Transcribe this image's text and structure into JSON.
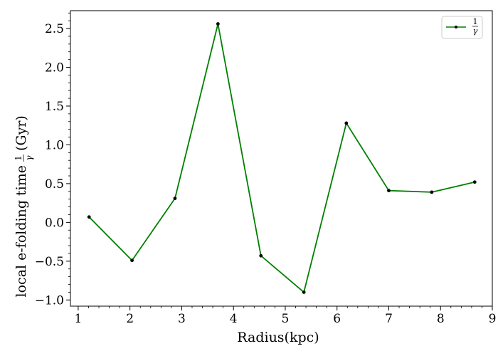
{
  "chart_data": {
    "type": "line",
    "xlabel": "Radius(kpc)",
    "ylabel": "local e-folding time",
    "ylabel_fraction": {
      "numerator": "1",
      "denominator": "γ"
    },
    "ylabel_unit": "(Gyr)",
    "xlim": [
      0.85,
      9.0
    ],
    "ylim": [
      -1.08,
      2.73
    ],
    "x_ticks": [
      1,
      2,
      3,
      4,
      5,
      6,
      7,
      8,
      9
    ],
    "y_ticks": [
      -1.0,
      -0.5,
      0.0,
      0.5,
      1.0,
      1.5,
      2.0,
      2.5
    ],
    "y_tick_labels": [
      "−1.0",
      "−0.5",
      "0.0",
      "0.5",
      "1.0",
      "1.5",
      "2.0",
      "2.5"
    ],
    "x_minor_step": 0.2,
    "y_minor_step": 0.1,
    "grid": false,
    "legend_position": "top-right",
    "series": [
      {
        "name": "1/γ",
        "label_numerator": "1",
        "label_denominator": "γ",
        "color": "#008000",
        "marker_color": "#000000",
        "x": [
          1.21,
          2.04,
          2.87,
          3.7,
          4.53,
          5.36,
          6.18,
          7.0,
          7.83,
          8.66
        ],
        "y": [
          0.07,
          -0.49,
          0.31,
          2.56,
          -0.43,
          -0.9,
          1.28,
          0.41,
          0.39,
          0.52
        ]
      }
    ]
  }
}
